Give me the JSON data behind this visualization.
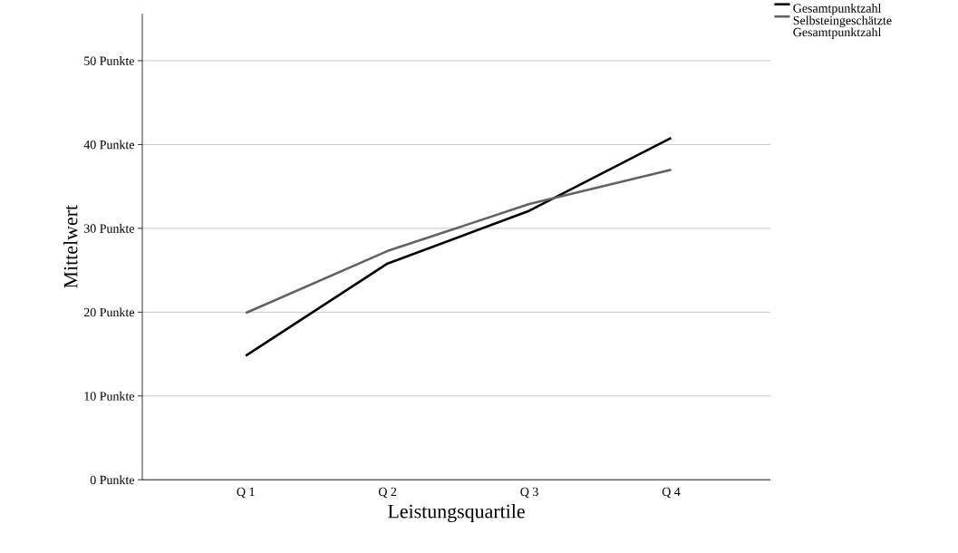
{
  "chart_data": {
    "type": "line",
    "xlabel": "Leistungsquartile",
    "ylabel": "Mittelwert",
    "categories": [
      "Q 1",
      "Q 2",
      "Q 3",
      "Q 4"
    ],
    "series": [
      {
        "name": "Gesamtpunktzahl",
        "color": "#000000",
        "values": [
          14.8,
          25.8,
          32.1,
          40.8
        ]
      },
      {
        "name": "Selbsteingeschätzte Gesamtpunktzahl",
        "color": "#5f6362",
        "values": [
          19.9,
          27.3,
          32.9,
          37.0
        ]
      }
    ],
    "ylim": [
      0,
      55.6
    ],
    "yticks": [
      {
        "value": 0,
        "label": "0 Punkte"
      },
      {
        "value": 10,
        "label": "10 Punkte"
      },
      {
        "value": 20,
        "label": "20 Punkte"
      },
      {
        "value": 30,
        "label": "30 Punkte"
      },
      {
        "value": 40,
        "label": "40 Punkte"
      },
      {
        "value": 50,
        "label": "50 Punkte"
      }
    ],
    "grid": "y",
    "legend": "top right",
    "marker": "none",
    "line_style": "solid"
  }
}
